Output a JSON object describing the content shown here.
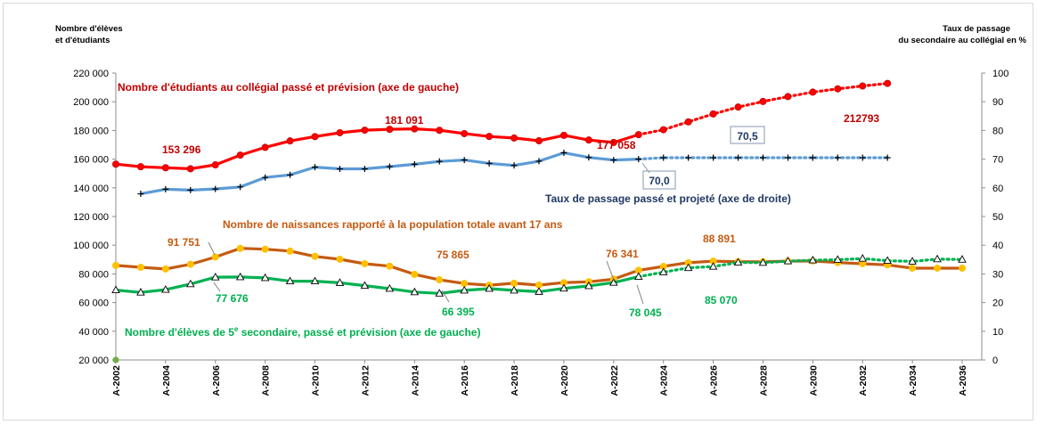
{
  "chart_data": {
    "type": "line",
    "left_axis_title": [
      "Nombre d'élèves",
      "et d'étudiants"
    ],
    "right_axis_title": [
      "Taux de passage",
      "du secondaire au collégial en %"
    ],
    "ylim_left": [
      20000,
      220000
    ],
    "ylim_right": [
      0,
      100
    ],
    "left_ticks": [
      "20 000",
      "40 000",
      "60 000",
      "80 000",
      "100 000",
      "120 000",
      "140 000",
      "160 000",
      "180 000",
      "200 000",
      "220 000"
    ],
    "right_ticks": [
      "0",
      "10",
      "20",
      "30",
      "40",
      "50",
      "60",
      "70",
      "80",
      "90",
      "100"
    ],
    "years": [
      2002,
      2003,
      2004,
      2005,
      2006,
      2007,
      2008,
      2009,
      2010,
      2011,
      2012,
      2013,
      2014,
      2015,
      2016,
      2017,
      2018,
      2019,
      2020,
      2021,
      2022,
      2023,
      2024,
      2025,
      2026,
      2027,
      2028,
      2029,
      2030,
      2031,
      2032,
      2033,
      2034,
      2035,
      2036
    ],
    "x_labels": [
      "A-2002",
      "A-2004",
      "A-2006",
      "A-2008",
      "A-2010",
      "A-2012",
      "A-2014",
      "A-2016",
      "A-2018",
      "A-2020",
      "A-2022",
      "A-2024",
      "A-2026",
      "A-2028",
      "A-2030",
      "A-2032",
      "A-2034",
      "A-2036"
    ],
    "series": [
      {
        "name": "Nombre d'étudiants au collégial passé et prévision (axe de gauche)",
        "axis": "left",
        "color": "#ff0000",
        "marker": "circle",
        "marker_color": "#ff0000",
        "x": [
          2002,
          2003,
          2004,
          2005,
          2006,
          2007,
          2008,
          2009,
          2010,
          2011,
          2012,
          2013,
          2014,
          2015,
          2016,
          2017,
          2018,
          2019,
          2020,
          2021,
          2022,
          2023
        ],
        "values": [
          156500,
          154700,
          154000,
          153296,
          156000,
          162800,
          168200,
          172700,
          175700,
          178400,
          180200,
          180800,
          181091,
          180100,
          177800,
          175800,
          174700,
          172800,
          176600,
          173300,
          171600,
          177058
        ],
        "forecast": {
          "x": [
            2023,
            2024,
            2025,
            2026,
            2027,
            2028,
            2029,
            2030,
            2031,
            2032,
            2033
          ],
          "values": [
            177058,
            180500,
            186000,
            191500,
            196300,
            200200,
            203600,
            206700,
            209000,
            211000,
            212793
          ]
        }
      },
      {
        "name": "Taux de passage passé et projeté (axe de droite)",
        "axis": "right",
        "color": "#5b9bd5",
        "marker": "plus",
        "marker_color": "#000000",
        "x": [
          2003,
          2004,
          2005,
          2006,
          2007,
          2008,
          2009,
          2010,
          2011,
          2012,
          2013,
          2014,
          2015,
          2016,
          2017,
          2018,
          2019,
          2020,
          2021,
          2022,
          2023
        ],
        "values": [
          57.9,
          59.5,
          59.2,
          59.6,
          60.3,
          63.6,
          64.5,
          67.2,
          66.6,
          66.6,
          67.4,
          68.2,
          69.2,
          69.7,
          68.5,
          67.8,
          69.3,
          72.2,
          70.6,
          69.7,
          70.0
        ],
        "forecast": {
          "x": [
            2023,
            2024,
            2025,
            2026,
            2027,
            2028,
            2029,
            2030,
            2031,
            2032,
            2033
          ],
          "values": [
            70.0,
            70.5,
            70.5,
            70.5,
            70.5,
            70.5,
            70.5,
            70.5,
            70.5,
            70.5,
            70.5
          ]
        }
      },
      {
        "name": "Nombre de naissances rapporté à la population totale avant 17 ans",
        "axis": "left",
        "color": "#c55a11",
        "marker": "circle",
        "marker_color": "#ffc000",
        "x": [
          2002,
          2003,
          2004,
          2005,
          2006,
          2007,
          2008,
          2009,
          2010,
          2011,
          2012,
          2013,
          2014,
          2015,
          2016,
          2017,
          2018,
          2019,
          2020,
          2021,
          2022,
          2023,
          2024,
          2025,
          2026,
          2027,
          2028,
          2029,
          2030,
          2031,
          2032,
          2033,
          2034,
          2035,
          2036
        ],
        "values": [
          85900,
          84600,
          83400,
          86700,
          91751,
          97800,
          97200,
          95900,
          92200,
          90200,
          87100,
          85400,
          79700,
          75865,
          73300,
          72100,
          73500,
          72200,
          73900,
          74500,
          76341,
          82500,
          85200,
          87800,
          88891,
          88500,
          88400,
          88900,
          89000,
          87900,
          87100,
          86300,
          84000,
          84000,
          84000
        ]
      },
      {
        "name": "Nombre d'élèves de 5e secondaire, passé et prévision (axe de gauche)",
        "axis": "left",
        "color": "#00b050",
        "marker": "triangle",
        "marker_color": "#ffffff",
        "x": [
          2002,
          2003,
          2004,
          2005,
          2006,
          2007,
          2008,
          2009,
          2010,
          2011,
          2012,
          2013,
          2014,
          2015,
          2016,
          2017,
          2018,
          2019,
          2020,
          2021,
          2022,
          2023
        ],
        "values": [
          68700,
          67100,
          69000,
          72900,
          77676,
          77800,
          77200,
          74900,
          74900,
          73800,
          71800,
          69700,
          67300,
          66395,
          68500,
          69700,
          68500,
          67600,
          69900,
          71600,
          73900,
          78045
        ],
        "forecast": {
          "x": [
            2023,
            2024,
            2025,
            2026,
            2027,
            2028,
            2029,
            2030,
            2031,
            2032,
            2033,
            2034,
            2035,
            2036
          ],
          "values": [
            78045,
            81200,
            84200,
            85070,
            88000,
            87800,
            88900,
            89500,
            89900,
            90700,
            89200,
            88700,
            90300,
            90000
          ]
        }
      }
    ],
    "annotations": [
      {
        "text": "Nombre d'étudiants au collégial passé et prévision (axe de gauche)",
        "color": "#c00000"
      },
      {
        "text": "153 296",
        "color": "#c00000"
      },
      {
        "text": "181 091",
        "color": "#c00000"
      },
      {
        "text": "177 058",
        "color": "#c00000"
      },
      {
        "text": "212793",
        "color": "#c00000"
      },
      {
        "text": "70,5",
        "color": "#1f3864"
      },
      {
        "text": "70,0",
        "color": "#1f3864"
      },
      {
        "text": "Taux de passage passé et projeté (axe de droite)",
        "color": "#1f3864"
      },
      {
        "text": "Nombre de naissances rapporté à la population totale avant 17 ans",
        "color": "#c55a11"
      },
      {
        "text": "91 751",
        "color": "#c55a11"
      },
      {
        "text": "75 865",
        "color": "#c55a11"
      },
      {
        "text": "76 341",
        "color": "#c55a11"
      },
      {
        "text": "88 891",
        "color": "#c55a11"
      },
      {
        "text": "77 676",
        "color": "#00b050"
      },
      {
        "text": "66 395",
        "color": "#00b050"
      },
      {
        "text": "78 045",
        "color": "#00b050"
      },
      {
        "text": "85 070",
        "color": "#00b050"
      },
      {
        "text": "Nombre d'élèves de 5",
        "color": "#00b050"
      },
      {
        "text": "e",
        "color": "#00b050"
      },
      {
        "text": " secondaire, passé et prévision (axe de gauche)",
        "color": "#00b050"
      }
    ]
  }
}
